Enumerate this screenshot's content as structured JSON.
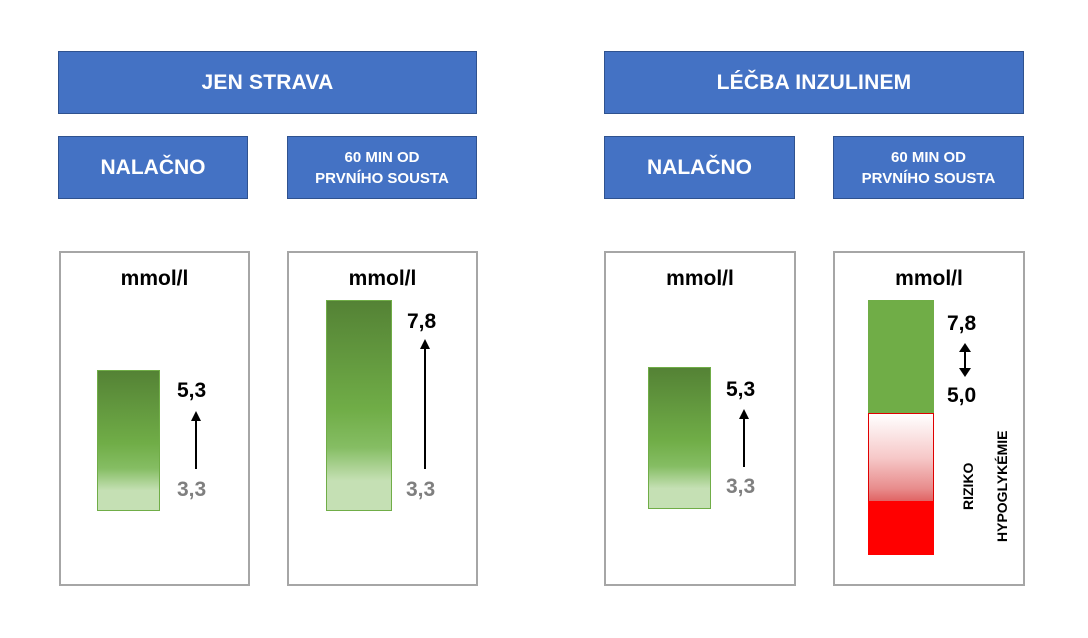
{
  "sections": {
    "diet": {
      "title": "JEN STRAVA"
    },
    "insulin": {
      "title": "LÉČBA INZULINEM"
    }
  },
  "subheaders": {
    "fasting": "NALAČNO",
    "after_meal_line1": "60 MIN OD",
    "after_meal_line2": "PRVNÍHO SOUSTA"
  },
  "panels": [
    {
      "unit": "mmol/l",
      "top_value": "5,3",
      "base_value": "3,3"
    },
    {
      "unit": "mmol/l",
      "top_value": "7,8",
      "base_value": "3,3"
    },
    {
      "unit": "mmol/l",
      "top_value": "5,3",
      "base_value": "3,3"
    },
    {
      "unit": "mmol/l",
      "top_value": "7,8",
      "bottom_value": "5,0",
      "risk_label_line1": "RIZIKO",
      "risk_label_line2": "HYPOGLYKÉMIE"
    }
  ],
  "colors": {
    "header_blue": "#4472c4",
    "bar_green": "#70ad47",
    "risk_red": "#ff0000"
  }
}
